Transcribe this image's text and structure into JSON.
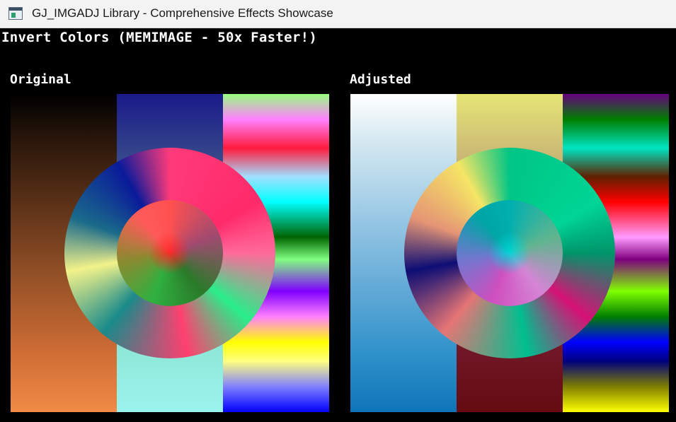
{
  "window": {
    "title": "GJ_IMGADJ Library - Comprehensive Effects Showcase",
    "icon": "app-window-icon"
  },
  "screen": {
    "header": "Invert Colors (MEMIMAGE - 50x Faster!)",
    "panels": {
      "original": {
        "label": "Original"
      },
      "adjusted": {
        "label": "Adjusted"
      }
    }
  }
}
